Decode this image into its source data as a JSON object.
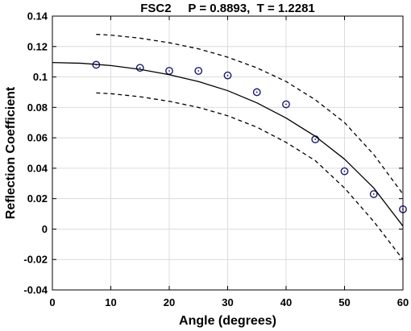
{
  "chart_data": {
    "type": "scatter",
    "title": "FSC2     P = 0.8893,  T = 1.2281",
    "xlabel": "Angle (degrees)",
    "ylabel": "Reflection Coefficient",
    "xlim": [
      0,
      60
    ],
    "ylim": [
      -0.04,
      0.14
    ],
    "xticks": [
      0,
      10,
      20,
      30,
      40,
      50,
      60
    ],
    "xtick_labels": [
      "0",
      "10",
      "20",
      "30",
      "40",
      "50",
      "60"
    ],
    "yticks": [
      -0.04,
      -0.02,
      0,
      0.02,
      0.04,
      0.06,
      0.08,
      0.1,
      0.12,
      0.14
    ],
    "ytick_labels": [
      "-0.04",
      "-0.02",
      "0",
      "0.02",
      "0.04",
      "0.06",
      "0.08",
      "0.1",
      "0.12",
      "0.14"
    ],
    "grid": true,
    "series": [
      {
        "style": "markers",
        "marker": "circle-dot",
        "x": [
          7.5,
          15,
          20,
          25,
          30,
          35,
          40,
          45,
          50,
          55,
          60
        ],
        "y": [
          0.108,
          0.106,
          0.104,
          0.104,
          0.101,
          0.09,
          0.082,
          0.059,
          0.038,
          0.023,
          0.013
        ]
      },
      {
        "style": "solid-line",
        "x": [
          0,
          5,
          10,
          15,
          20,
          25,
          30,
          35,
          40,
          45,
          50,
          55,
          60
        ],
        "y": [
          0.1095,
          0.109,
          0.1075,
          0.105,
          0.1015,
          0.097,
          0.091,
          0.083,
          0.073,
          0.061,
          0.046,
          0.027,
          0.002
        ]
      },
      {
        "style": "dashed-line",
        "x": [
          7.5,
          10,
          15,
          20,
          25,
          30,
          35,
          40,
          45,
          50,
          55,
          60
        ],
        "y": [
          0.128,
          0.1275,
          0.1255,
          0.1225,
          0.1185,
          0.113,
          0.106,
          0.097,
          0.085,
          0.07,
          0.049,
          0.023
        ]
      },
      {
        "style": "dashed-line",
        "x": [
          7.5,
          10,
          15,
          20,
          25,
          30,
          35,
          40,
          45,
          50,
          55,
          60
        ],
        "y": [
          0.0895,
          0.089,
          0.087,
          0.084,
          0.08,
          0.0745,
          0.067,
          0.057,
          0.045,
          0.027,
          0.005,
          -0.02
        ]
      }
    ],
    "colors": {
      "line": "#000000",
      "marker_edge": "#1a1a6e",
      "grid": "#dcdcdc"
    }
  }
}
